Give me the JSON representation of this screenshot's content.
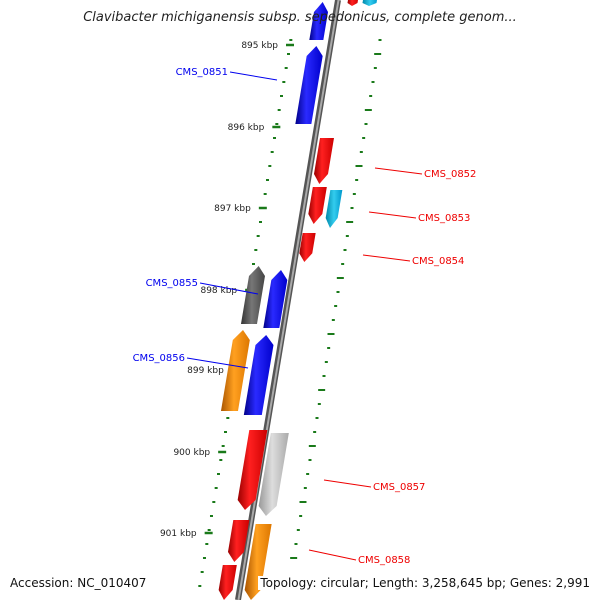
{
  "title": "Clavibacter michiganensis subsp. sepedonicus, complete genom...",
  "footer": {
    "accession": "Accession: NC_010407",
    "topology": "Topology: circular; Length: 3,258,645 bp; Genes: 2,991"
  },
  "colors": {
    "forward": "#0000ee",
    "reverse": "#ee0000",
    "tick": "#1a7a1a",
    "backbone": "#888888"
  },
  "ruler": [
    {
      "label": "895 kbp"
    },
    {
      "label": "896 kbp"
    },
    {
      "label": "897 kbp"
    },
    {
      "label": "898 kbp"
    },
    {
      "label": "899 kbp"
    },
    {
      "label": "900 kbp"
    },
    {
      "label": "901 kbp"
    }
  ],
  "gene_labels": [
    {
      "text": "CMS_0851",
      "strand": "forward"
    },
    {
      "text": "CMS_0852",
      "strand": "reverse"
    },
    {
      "text": "CMS_0853",
      "strand": "reverse"
    },
    {
      "text": "CMS_0854",
      "strand": "reverse"
    },
    {
      "text": "CMS_0855",
      "strand": "forward"
    },
    {
      "text": "CMS_0856",
      "strand": "forward"
    },
    {
      "text": "CMS_0857",
      "strand": "reverse"
    },
    {
      "text": "CMS_0858",
      "strand": "reverse"
    }
  ]
}
